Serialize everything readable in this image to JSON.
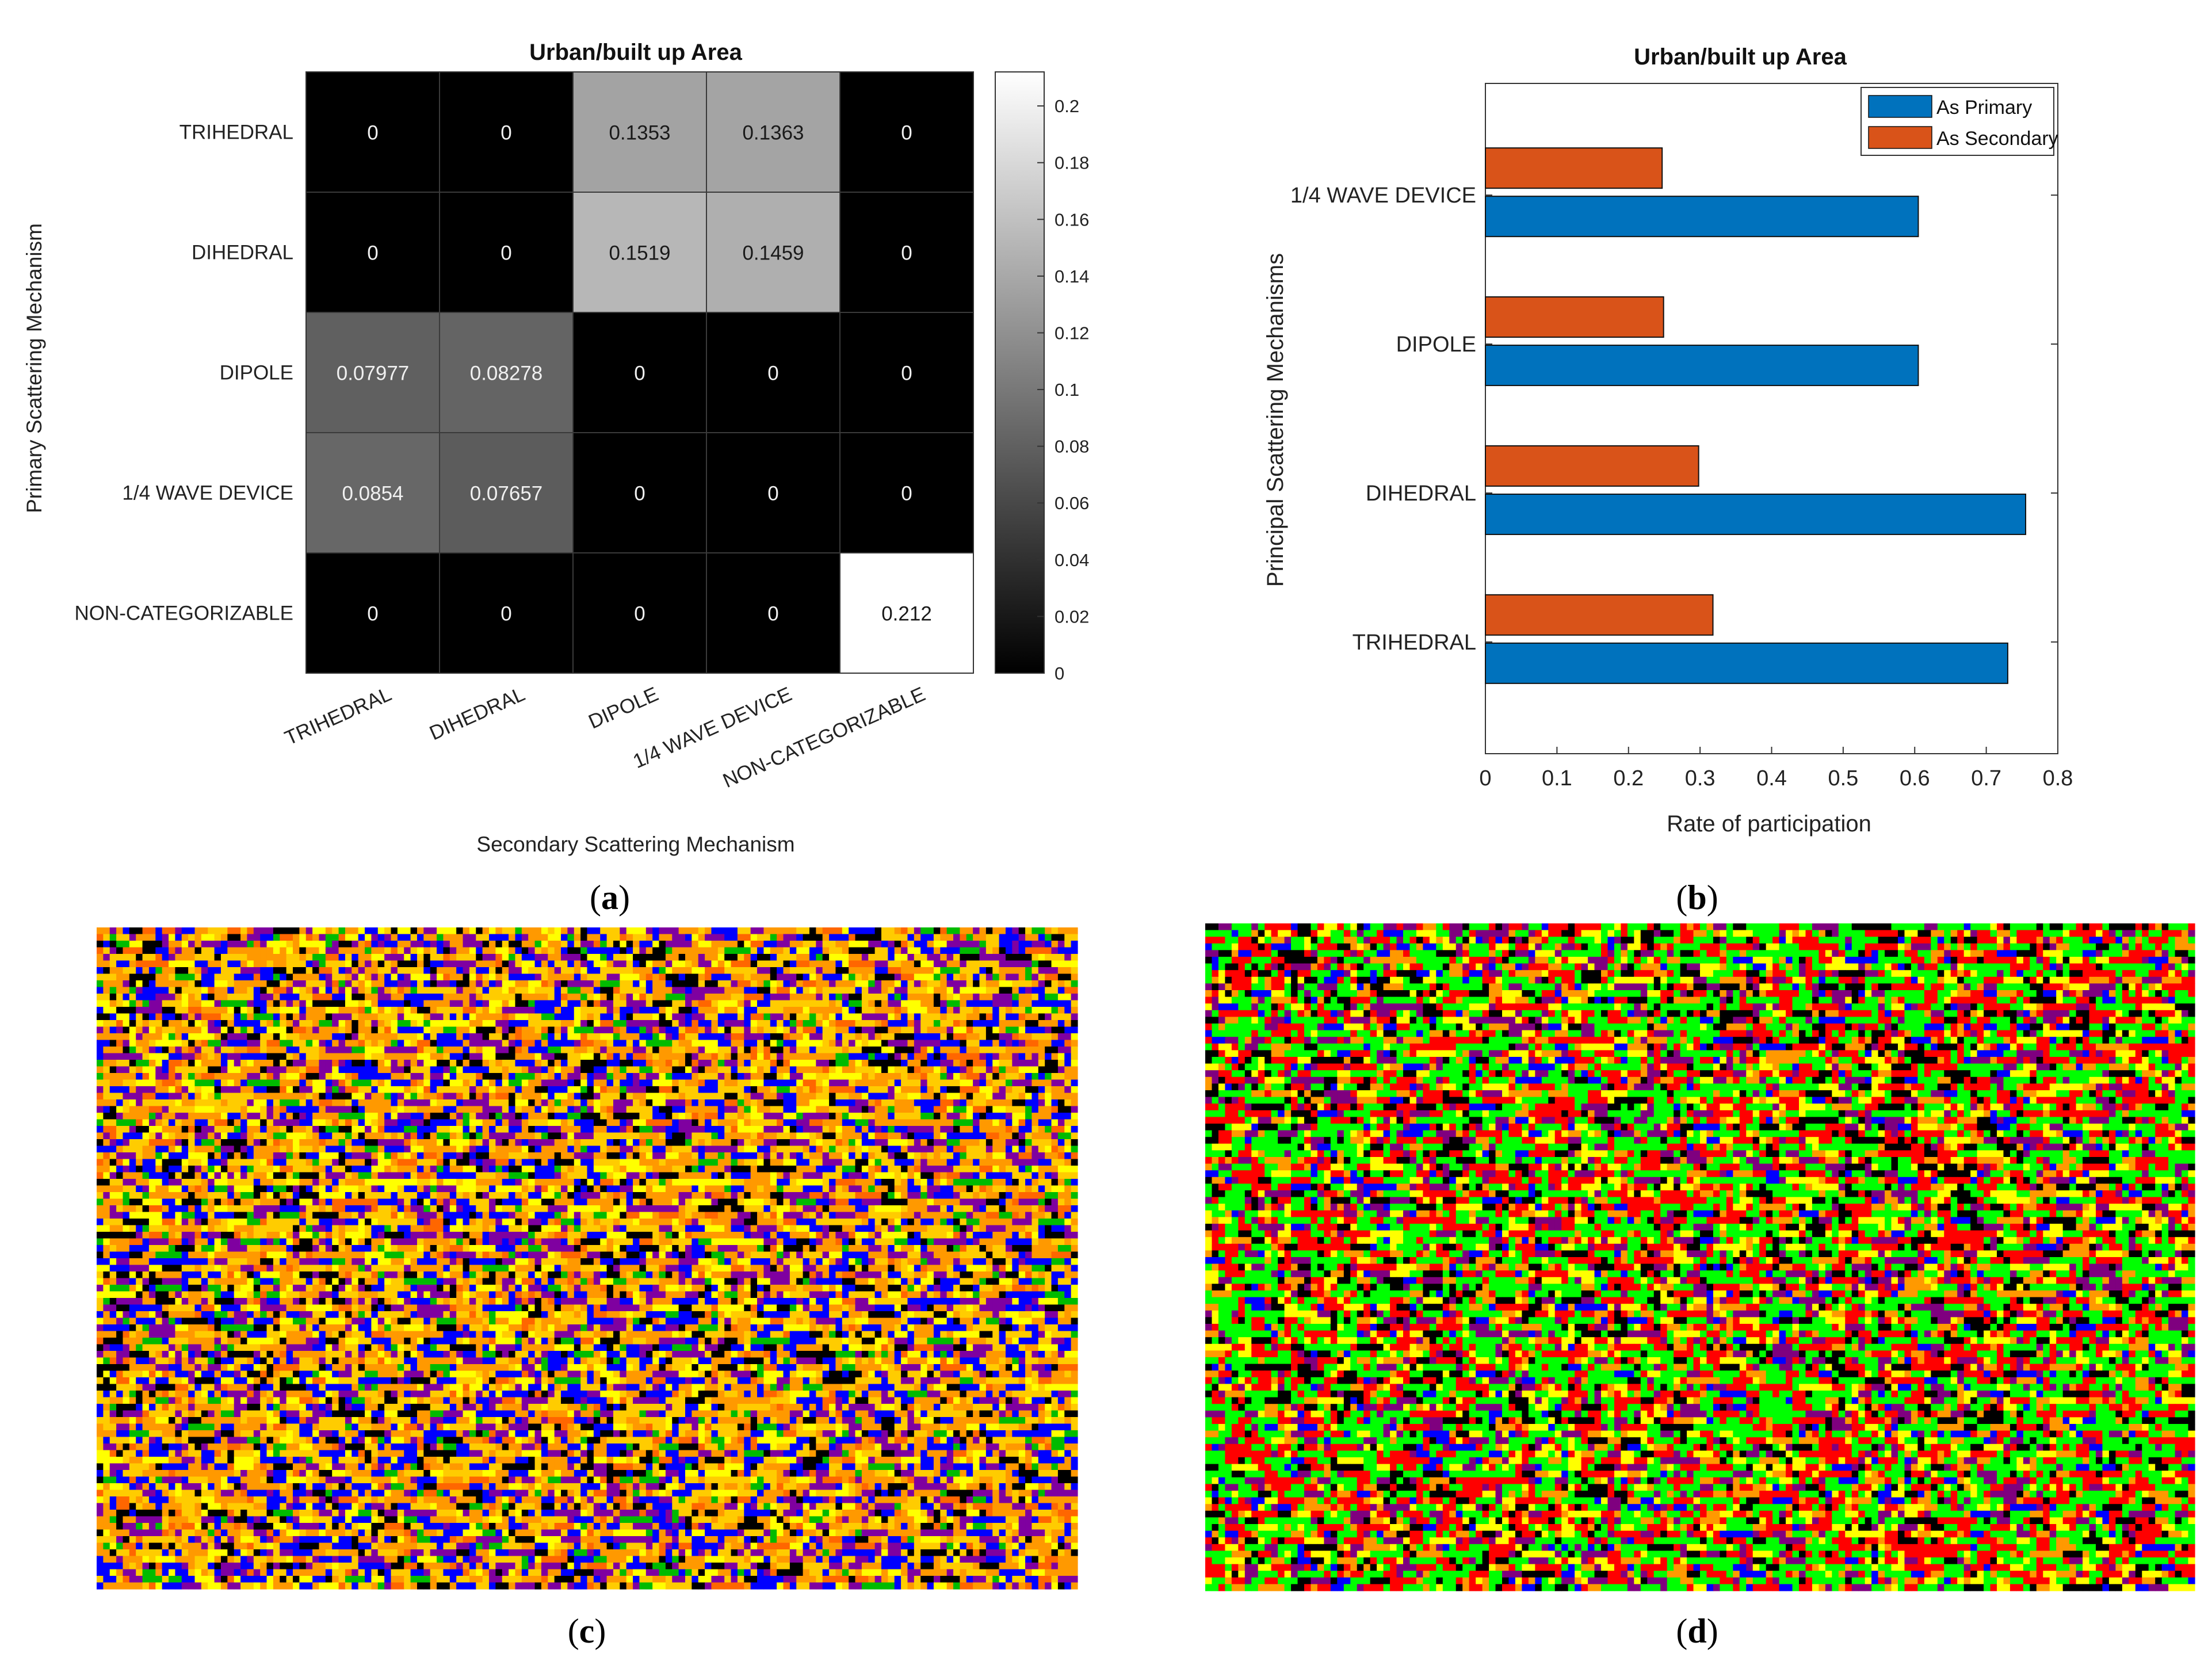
{
  "colors": {
    "heat_low": "#000000",
    "heat_high": "#ffffff",
    "bar_primary": "#0072bd",
    "bar_secondary": "#d95319",
    "panel_c_palette": [
      "#ff9900",
      "#ffcc00",
      "#0000ff",
      "#7f00a0",
      "#000000",
      "#00bb00",
      "#ffff00",
      "#ff6600"
    ],
    "panel_d_palette": [
      "#00ff00",
      "#ff0000",
      "#000000",
      "#7f007f",
      "#ffff00",
      "#ff9900",
      "#0000ff"
    ]
  },
  "panels": {
    "a": {
      "caption_letter": "a"
    },
    "b": {
      "caption_letter": "b"
    },
    "c": {
      "caption_letter": "c"
    },
    "d": {
      "caption_letter": "d"
    }
  },
  "chart_data": [
    {
      "type": "heatmap",
      "title": "Urban/built up Area",
      "xlabel": "Secondary Scattering Mechanism",
      "ylabel": "Primary Scattering Mechanism",
      "x_categories": [
        "TRIHEDRAL",
        "DIHEDRAL",
        "DIPOLE",
        "1/4 WAVE DEVICE",
        "NON-CATEGORIZABLE"
      ],
      "y_categories": [
        "TRIHEDRAL",
        "DIHEDRAL",
        "DIPOLE",
        "1/4 WAVE DEVICE",
        "NON-CATEGORIZABLE"
      ],
      "values": [
        [
          0,
          0,
          0.1353,
          0.1363,
          0
        ],
        [
          0,
          0,
          0.1519,
          0.1459,
          0
        ],
        [
          0.07977,
          0.08278,
          0,
          0,
          0
        ],
        [
          0.0854,
          0.07657,
          0,
          0,
          0
        ],
        [
          0,
          0,
          0,
          0,
          0.212
        ]
      ],
      "labels": [
        [
          "0",
          "0",
          "0.1353",
          "0.1363",
          "0"
        ],
        [
          "0",
          "0",
          "0.1519",
          "0.1459",
          "0"
        ],
        [
          "0.07977",
          "0.08278",
          "0",
          "0",
          "0"
        ],
        [
          "0.0854",
          "0.07657",
          "0",
          "0",
          "0"
        ],
        [
          "0",
          "0",
          "0",
          "0",
          "0.212"
        ]
      ],
      "colorbar": {
        "range": [
          0,
          0.212
        ],
        "ticks": [
          0,
          0.02,
          0.04,
          0.06,
          0.08,
          0.1,
          0.12,
          0.14,
          0.16,
          0.18,
          0.2
        ],
        "tick_labels": [
          "0",
          "0.02",
          "0.04",
          "0.06",
          "0.08",
          "0.1",
          "0.12",
          "0.14",
          "0.16",
          "0.18",
          "0.2"
        ]
      }
    },
    {
      "type": "bar",
      "orientation": "horizontal",
      "title": "Urban/built up Area",
      "xlabel": "Rate of participation",
      "ylabel": "Principal Scattering Mechanisms",
      "categories": [
        "TRIHEDRAL",
        "DIHEDRAL",
        "DIPOLE",
        "1/4 WAVE DEVICE"
      ],
      "series": [
        {
          "name": "As Primary",
          "values": [
            0.73,
            0.755,
            0.605,
            0.605
          ]
        },
        {
          "name": "As Secondary",
          "values": [
            0.318,
            0.298,
            0.249,
            0.247
          ]
        }
      ],
      "xlim": [
        0,
        0.8
      ],
      "xticks": [
        0,
        0.1,
        0.2,
        0.3,
        0.4,
        0.5,
        0.6,
        0.7,
        0.8
      ],
      "xtick_labels": [
        "0",
        "0.1",
        "0.2",
        "0.3",
        "0.4",
        "0.5",
        "0.6",
        "0.7",
        "0.8"
      ],
      "legend": "top-right"
    }
  ]
}
